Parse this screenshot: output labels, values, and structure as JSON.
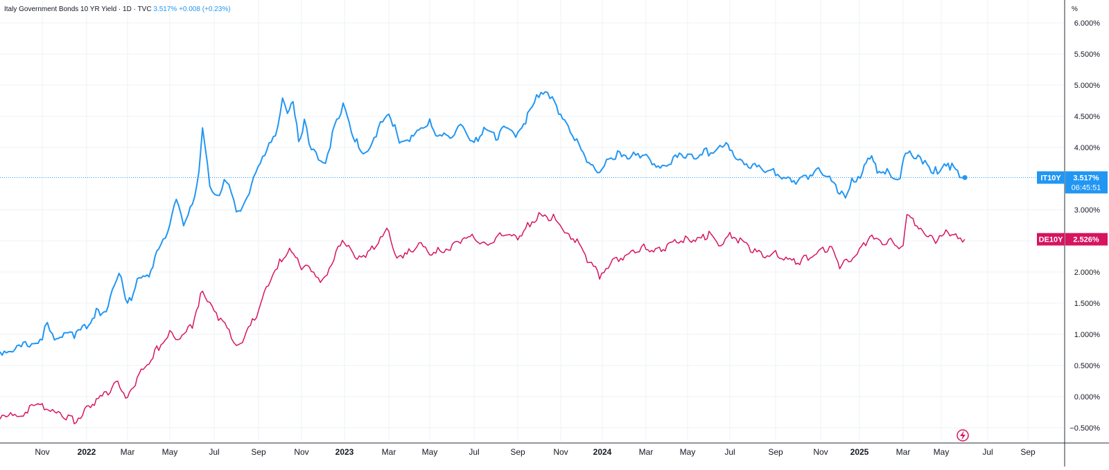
{
  "header": {
    "symbol_title": "Italy Government Bonds 10 YR Yield",
    "interval": "1D",
    "source": "TVC",
    "last_price": "3.517%",
    "change": "+0.008 (+0.23%)"
  },
  "axis_unit": "%",
  "chart_data": {
    "type": "line",
    "x_axis_ticks": [
      "Nov",
      "2022",
      "Mar",
      "May",
      "Jul",
      "Sep",
      "Nov",
      "2023",
      "Mar",
      "May",
      "Jul",
      "Sep",
      "Nov",
      "2024",
      "Mar",
      "May",
      "Jul",
      "Sep",
      "Nov",
      "2025",
      "Mar",
      "May",
      "Jul",
      "Sep"
    ],
    "y_axis_ticks": [
      "6.000%",
      "5.500%",
      "5.000%",
      "4.500%",
      "4.000%",
      "3.000%",
      "2.500%",
      "2.000%",
      "1.500%",
      "1.000%",
      "0.500%",
      "0.000%",
      "−0.500%"
    ],
    "y_tick_values": [
      6.0,
      5.5,
      5.0,
      4.5,
      4.0,
      3.0,
      2.5,
      2.0,
      1.5,
      1.0,
      0.5,
      0.0,
      -0.5
    ],
    "ylim": [
      -0.75,
      6.25
    ],
    "grid": true,
    "colors": {
      "it10y": "#2196f3",
      "de10y": "#d6145f",
      "axis_text": "#131722",
      "grid": "#eef1f6"
    },
    "series": [
      {
        "name": "IT10Y",
        "last_label": "3.517%",
        "countdown": "06:45:51",
        "last_value": 3.517,
        "points": [
          [
            "2021-10-01",
            0.72
          ],
          [
            "2021-10-15",
            0.78
          ],
          [
            "2021-11-01",
            0.95
          ],
          [
            "2021-11-08",
            1.2
          ],
          [
            "2021-11-15",
            0.95
          ],
          [
            "2021-12-01",
            1.0
          ],
          [
            "2021-12-15",
            0.98
          ],
          [
            "2022-01-01",
            1.15
          ],
          [
            "2022-01-15",
            1.35
          ],
          [
            "2022-02-01",
            1.4
          ],
          [
            "2022-02-10",
            1.85
          ],
          [
            "2022-02-20",
            1.95
          ],
          [
            "2022-03-01",
            1.45
          ],
          [
            "2022-03-15",
            1.85
          ],
          [
            "2022-04-01",
            1.95
          ],
          [
            "2022-04-15",
            2.4
          ],
          [
            "2022-05-01",
            2.75
          ],
          [
            "2022-05-10",
            3.15
          ],
          [
            "2022-05-20",
            2.8
          ],
          [
            "2022-06-01",
            3.1
          ],
          [
            "2022-06-10",
            3.6
          ],
          [
            "2022-06-15",
            4.28
          ],
          [
            "2022-06-25",
            3.4
          ],
          [
            "2022-07-05",
            3.2
          ],
          [
            "2022-07-15",
            3.45
          ],
          [
            "2022-07-25",
            3.3
          ],
          [
            "2022-08-01",
            3.0
          ],
          [
            "2022-08-10",
            3.05
          ],
          [
            "2022-08-25",
            3.5
          ],
          [
            "2022-09-10",
            3.9
          ],
          [
            "2022-09-25",
            4.2
          ],
          [
            "2022-10-05",
            4.75
          ],
          [
            "2022-10-12",
            4.5
          ],
          [
            "2022-10-20",
            4.75
          ],
          [
            "2022-10-28",
            4.1
          ],
          [
            "2022-11-05",
            4.4
          ],
          [
            "2022-11-15",
            3.95
          ],
          [
            "2022-11-25",
            3.85
          ],
          [
            "2022-12-05",
            3.75
          ],
          [
            "2022-12-15",
            4.2
          ],
          [
            "2022-12-30",
            4.7
          ],
          [
            "2023-01-10",
            4.3
          ],
          [
            "2023-01-20",
            4.0
          ],
          [
            "2023-02-01",
            3.9
          ],
          [
            "2023-02-15",
            4.3
          ],
          [
            "2023-03-01",
            4.55
          ],
          [
            "2023-03-10",
            4.3
          ],
          [
            "2023-03-20",
            4.05
          ],
          [
            "2023-04-01",
            4.1
          ],
          [
            "2023-04-15",
            4.3
          ],
          [
            "2023-05-01",
            4.4
          ],
          [
            "2023-05-15",
            4.15
          ],
          [
            "2023-06-01",
            4.2
          ],
          [
            "2023-06-15",
            4.35
          ],
          [
            "2023-07-01",
            4.05
          ],
          [
            "2023-07-15",
            4.3
          ],
          [
            "2023-08-01",
            4.15
          ],
          [
            "2023-08-15",
            4.35
          ],
          [
            "2023-09-01",
            4.2
          ],
          [
            "2023-09-15",
            4.5
          ],
          [
            "2023-10-01",
            4.85
          ],
          [
            "2023-10-10",
            4.95
          ],
          [
            "2023-10-20",
            4.8
          ],
          [
            "2023-11-01",
            4.5
          ],
          [
            "2023-11-15",
            4.25
          ],
          [
            "2023-12-01",
            4.0
          ],
          [
            "2023-12-15",
            3.7
          ],
          [
            "2023-12-28",
            3.55
          ],
          [
            "2024-01-10",
            3.85
          ],
          [
            "2024-01-25",
            3.9
          ],
          [
            "2024-02-10",
            3.85
          ],
          [
            "2024-02-25",
            3.9
          ],
          [
            "2024-03-10",
            3.75
          ],
          [
            "2024-03-25",
            3.7
          ],
          [
            "2024-04-10",
            3.8
          ],
          [
            "2024-04-25",
            3.9
          ],
          [
            "2024-05-10",
            3.85
          ],
          [
            "2024-05-25",
            3.95
          ],
          [
            "2024-06-10",
            3.9
          ],
          [
            "2024-06-20",
            4.05
          ],
          [
            "2024-07-01",
            4.0
          ],
          [
            "2024-07-15",
            3.8
          ],
          [
            "2024-08-01",
            3.7
          ],
          [
            "2024-08-15",
            3.65
          ],
          [
            "2024-09-01",
            3.6
          ],
          [
            "2024-09-15",
            3.5
          ],
          [
            "2024-10-01",
            3.45
          ],
          [
            "2024-10-15",
            3.55
          ],
          [
            "2024-11-01",
            3.65
          ],
          [
            "2024-11-15",
            3.5
          ],
          [
            "2024-12-01",
            3.25
          ],
          [
            "2024-12-10",
            3.2
          ],
          [
            "2024-12-20",
            3.45
          ],
          [
            "2025-01-05",
            3.6
          ],
          [
            "2025-01-15",
            3.85
          ],
          [
            "2025-01-25",
            3.65
          ],
          [
            "2025-02-10",
            3.6
          ],
          [
            "2025-02-25",
            3.5
          ],
          [
            "2025-03-05",
            3.95
          ],
          [
            "2025-03-15",
            3.9
          ],
          [
            "2025-03-25",
            3.85
          ],
          [
            "2025-04-05",
            3.75
          ],
          [
            "2025-04-15",
            3.65
          ],
          [
            "2025-04-25",
            3.62
          ],
          [
            "2025-05-05",
            3.7
          ],
          [
            "2025-05-15",
            3.68
          ],
          [
            "2025-05-25",
            3.56
          ],
          [
            "2025-06-01",
            3.517
          ]
        ]
      },
      {
        "name": "DE10Y",
        "last_label": "2.526%",
        "last_value": 2.526,
        "points": [
          [
            "2021-10-01",
            -0.35
          ],
          [
            "2021-10-15",
            -0.28
          ],
          [
            "2021-11-01",
            -0.12
          ],
          [
            "2021-11-15",
            -0.25
          ],
          [
            "2021-12-01",
            -0.3
          ],
          [
            "2021-12-15",
            -0.38
          ],
          [
            "2022-01-01",
            -0.2
          ],
          [
            "2022-01-15",
            -0.05
          ],
          [
            "2022-02-01",
            0.05
          ],
          [
            "2022-02-15",
            0.28
          ],
          [
            "2022-03-01",
            -0.05
          ],
          [
            "2022-03-15",
            0.3
          ],
          [
            "2022-04-01",
            0.55
          ],
          [
            "2022-04-15",
            0.8
          ],
          [
            "2022-05-01",
            1.0
          ],
          [
            "2022-05-15",
            0.9
          ],
          [
            "2022-06-01",
            1.15
          ],
          [
            "2022-06-15",
            1.75
          ],
          [
            "2022-06-25",
            1.45
          ],
          [
            "2022-07-10",
            1.2
          ],
          [
            "2022-07-25",
            1.0
          ],
          [
            "2022-08-01",
            0.8
          ],
          [
            "2022-08-15",
            1.0
          ],
          [
            "2022-09-01",
            1.4
          ],
          [
            "2022-09-15",
            1.8
          ],
          [
            "2022-10-01",
            2.2
          ],
          [
            "2022-10-15",
            2.35
          ],
          [
            "2022-11-01",
            2.1
          ],
          [
            "2022-11-15",
            2.05
          ],
          [
            "2022-12-01",
            1.85
          ],
          [
            "2022-12-20",
            2.3
          ],
          [
            "2023-01-01",
            2.5
          ],
          [
            "2023-01-15",
            2.25
          ],
          [
            "2023-02-01",
            2.3
          ],
          [
            "2023-02-15",
            2.45
          ],
          [
            "2023-03-01",
            2.7
          ],
          [
            "2023-03-10",
            2.3
          ],
          [
            "2023-03-25",
            2.25
          ],
          [
            "2023-04-15",
            2.45
          ],
          [
            "2023-05-01",
            2.3
          ],
          [
            "2023-05-15",
            2.35
          ],
          [
            "2023-06-01",
            2.4
          ],
          [
            "2023-06-15",
            2.5
          ],
          [
            "2023-07-01",
            2.55
          ],
          [
            "2023-07-15",
            2.45
          ],
          [
            "2023-08-01",
            2.55
          ],
          [
            "2023-08-15",
            2.6
          ],
          [
            "2023-09-01",
            2.55
          ],
          [
            "2023-09-15",
            2.75
          ],
          [
            "2023-10-01",
            2.9
          ],
          [
            "2023-10-15",
            2.85
          ],
          [
            "2023-10-25",
            2.9
          ],
          [
            "2023-11-10",
            2.6
          ],
          [
            "2023-11-25",
            2.5
          ],
          [
            "2023-12-10",
            2.2
          ],
          [
            "2023-12-28",
            1.95
          ],
          [
            "2024-01-15",
            2.2
          ],
          [
            "2024-02-01",
            2.25
          ],
          [
            "2024-02-15",
            2.35
          ],
          [
            "2024-03-01",
            2.4
          ],
          [
            "2024-03-15",
            2.35
          ],
          [
            "2024-04-01",
            2.4
          ],
          [
            "2024-04-15",
            2.5
          ],
          [
            "2024-05-01",
            2.55
          ],
          [
            "2024-05-15",
            2.5
          ],
          [
            "2024-06-01",
            2.6
          ],
          [
            "2024-06-15",
            2.45
          ],
          [
            "2024-07-01",
            2.6
          ],
          [
            "2024-07-15",
            2.5
          ],
          [
            "2024-08-01",
            2.35
          ],
          [
            "2024-08-15",
            2.25
          ],
          [
            "2024-09-01",
            2.3
          ],
          [
            "2024-09-15",
            2.2
          ],
          [
            "2024-10-01",
            2.15
          ],
          [
            "2024-10-15",
            2.25
          ],
          [
            "2024-11-01",
            2.35
          ],
          [
            "2024-11-15",
            2.4
          ],
          [
            "2024-12-01",
            2.1
          ],
          [
            "2024-12-15",
            2.2
          ],
          [
            "2025-01-01",
            2.35
          ],
          [
            "2025-01-15",
            2.55
          ],
          [
            "2025-02-01",
            2.45
          ],
          [
            "2025-02-15",
            2.5
          ],
          [
            "2025-03-01",
            2.4
          ],
          [
            "2025-03-07",
            2.9
          ],
          [
            "2025-03-20",
            2.8
          ],
          [
            "2025-04-01",
            2.7
          ],
          [
            "2025-04-10",
            2.55
          ],
          [
            "2025-04-25",
            2.5
          ],
          [
            "2025-05-10",
            2.65
          ],
          [
            "2025-05-20",
            2.58
          ],
          [
            "2025-06-01",
            2.526
          ]
        ]
      }
    ]
  }
}
